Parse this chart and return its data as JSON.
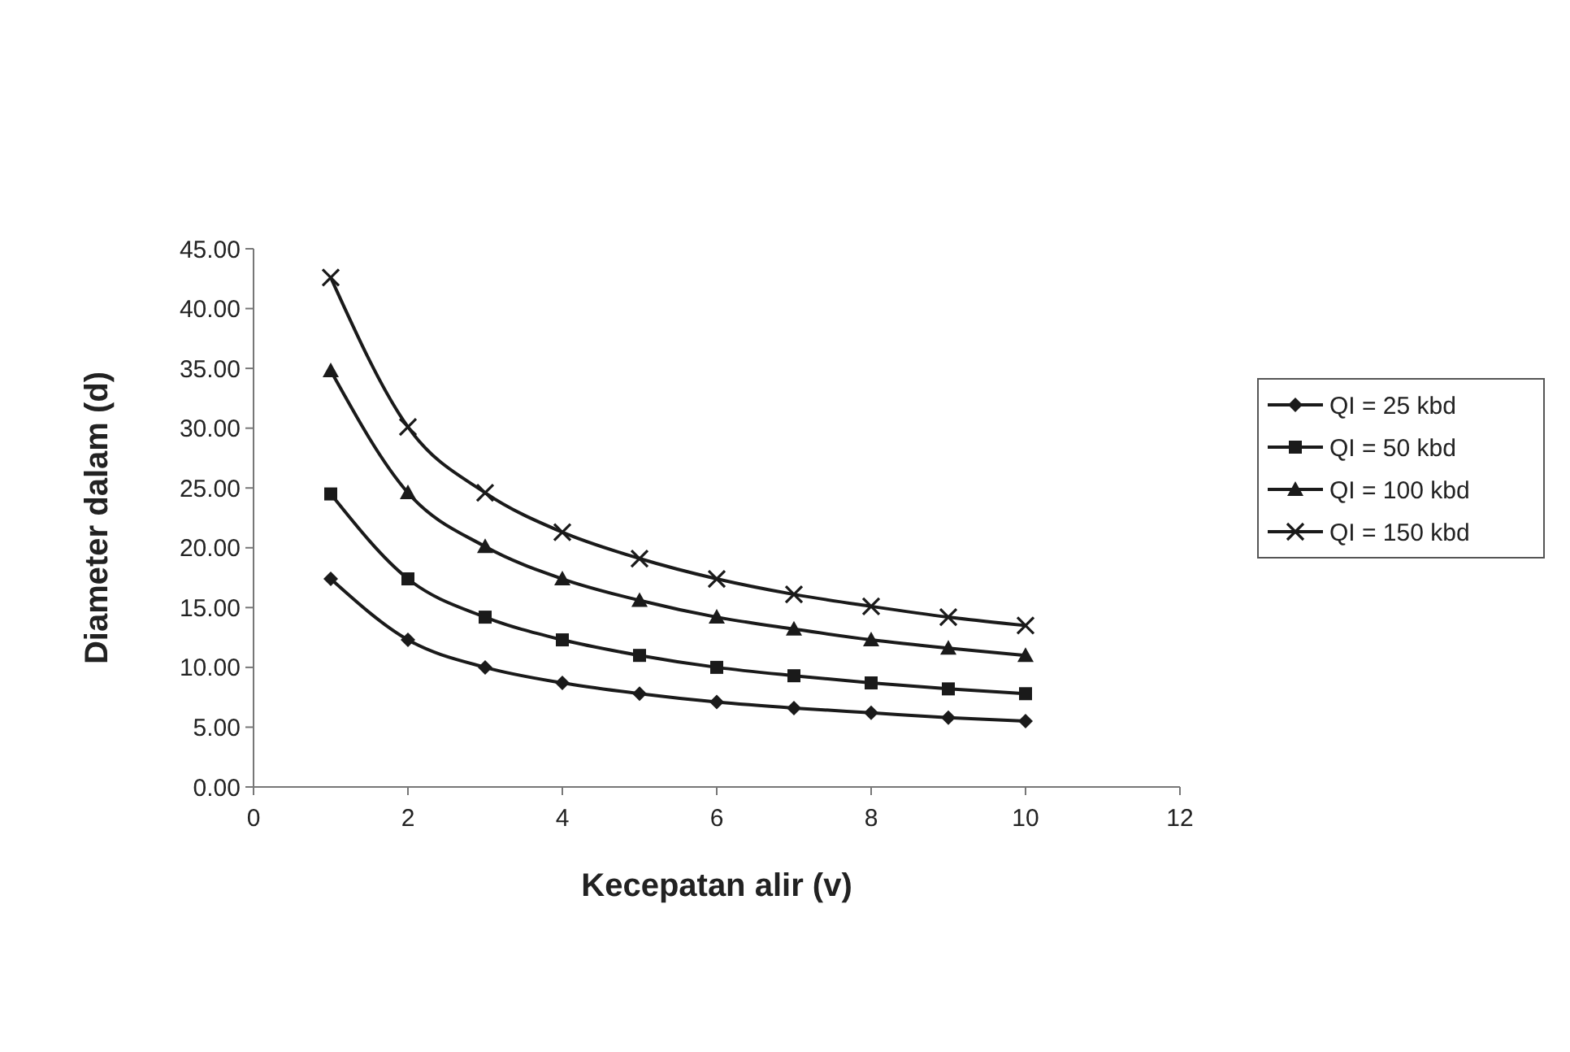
{
  "chart_data": {
    "type": "line",
    "xlabel": "Kecepatan alir (v)",
    "ylabel": "Diameter dalam (d)",
    "x": [
      1,
      2,
      3,
      4,
      5,
      6,
      7,
      8,
      9,
      10
    ],
    "series": [
      {
        "name": "QI = 25 kbd",
        "color": "#1a1a1a",
        "marker": "diamond",
        "values": [
          17.4,
          12.3,
          10.0,
          8.7,
          7.8,
          7.1,
          6.6,
          6.2,
          5.8,
          5.5
        ]
      },
      {
        "name": "QI = 50 kbd",
        "color": "#1a1a1a",
        "marker": "square",
        "values": [
          24.5,
          17.4,
          14.2,
          12.3,
          11.0,
          10.0,
          9.3,
          8.7,
          8.2,
          7.8
        ]
      },
      {
        "name": "QI = 100 kbd",
        "color": "#1a1a1a",
        "marker": "triangle",
        "values": [
          34.8,
          24.6,
          20.1,
          17.4,
          15.6,
          14.2,
          13.2,
          12.3,
          11.6,
          11.0
        ]
      },
      {
        "name": "QI = 150 kbd",
        "color": "#1a1a1a",
        "marker": "cross",
        "values": [
          42.6,
          30.1,
          24.6,
          21.3,
          19.1,
          17.4,
          16.1,
          15.1,
          14.2,
          13.5
        ]
      }
    ],
    "xlim": [
      0,
      12
    ],
    "xticks": [
      0,
      2,
      4,
      6,
      8,
      10,
      12
    ],
    "ylim": [
      0,
      45
    ],
    "yticks": [
      {
        "value": 0,
        "label": "0.00"
      },
      {
        "value": 5,
        "label": "5.00"
      },
      {
        "value": 10,
        "label": "10.00"
      },
      {
        "value": 15,
        "label": "15.00"
      },
      {
        "value": 20,
        "label": "20.00"
      },
      {
        "value": 25,
        "label": "25.00"
      },
      {
        "value": 30,
        "label": "30.00"
      },
      {
        "value": 35,
        "label": "35.00"
      },
      {
        "value": 40,
        "label": "40.00"
      },
      {
        "value": 45,
        "label": "45.00"
      }
    ],
    "grid": false,
    "legend": "right",
    "line_style": "solid"
  }
}
